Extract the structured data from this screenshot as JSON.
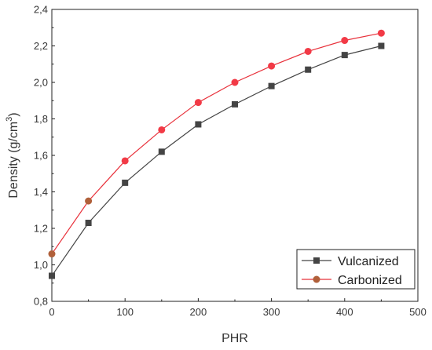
{
  "chart_data": {
    "type": "line",
    "x": [
      0,
      50,
      100,
      150,
      200,
      250,
      300,
      350,
      400,
      450
    ],
    "xlabel": "PHR",
    "ylabel": "Density (g/cm",
    "ylabel_sup": "3",
    "ylabel_close": ")",
    "xlim": [
      0,
      500
    ],
    "ylim": [
      0.8,
      2.4
    ],
    "xticks": [
      0,
      100,
      200,
      300,
      400,
      500
    ],
    "yticks": [
      0.8,
      1.0,
      1.2,
      1.4,
      1.6,
      1.8,
      2.0,
      2.2,
      2.4
    ],
    "xtick_labels": [
      "0",
      "100",
      "200",
      "300",
      "400",
      "500"
    ],
    "ytick_labels": [
      "0,8",
      "1,0",
      "1,2",
      "1,4",
      "1,6",
      "1,8",
      "2,0",
      "2,2",
      "2,4"
    ],
    "grid": false,
    "legend_position": "bottom-right",
    "series": [
      {
        "name": "Vulcanized",
        "values": [
          0.94,
          1.23,
          1.45,
          1.62,
          1.77,
          1.88,
          1.98,
          2.07,
          2.15,
          2.2
        ],
        "color": "#444444",
        "marker": "square"
      },
      {
        "name": "Carbonized",
        "values": [
          1.06,
          1.35,
          1.57,
          1.74,
          1.89,
          2.0,
          2.09,
          2.17,
          2.23,
          2.27
        ],
        "color": "#e8303a",
        "marker_color": "#f23a46",
        "marker_edge_first": "#b0603a",
        "marker": "circle"
      }
    ]
  }
}
